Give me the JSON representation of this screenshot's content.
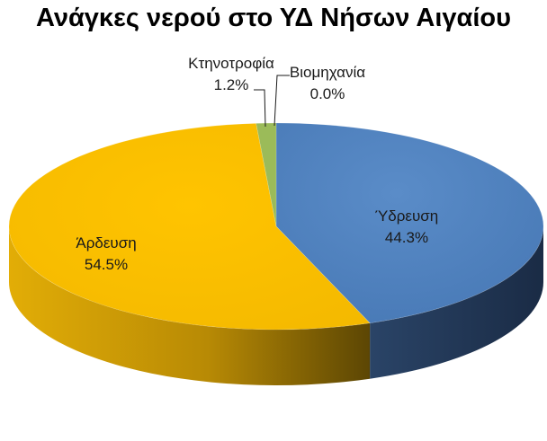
{
  "chart_data": {
    "type": "pie",
    "style": "3d-exploded-none",
    "title": "Ανάγκες νερού στο ΥΔ Νήσων Αιγαίου",
    "slices": [
      {
        "category": "Ύδρευση",
        "value": 44.3,
        "label": "44.3%",
        "color": "#4F81BD",
        "side_color": "#1F3250"
      },
      {
        "category": "Άρδευση",
        "value": 54.5,
        "label": "54.5%",
        "color": "#F8BF00",
        "side_color": "#A67E06"
      },
      {
        "category": "Κτηνοτροφία",
        "value": 1.2,
        "label": "1.2%",
        "color": "#9BBB59",
        "side_color": "#5F7534"
      },
      {
        "category": "Βιομηχανία",
        "value": 0.0,
        "label": "0.0%",
        "color": "#C0504D",
        "side_color": "#7A2F2D"
      }
    ],
    "legend": "none"
  }
}
